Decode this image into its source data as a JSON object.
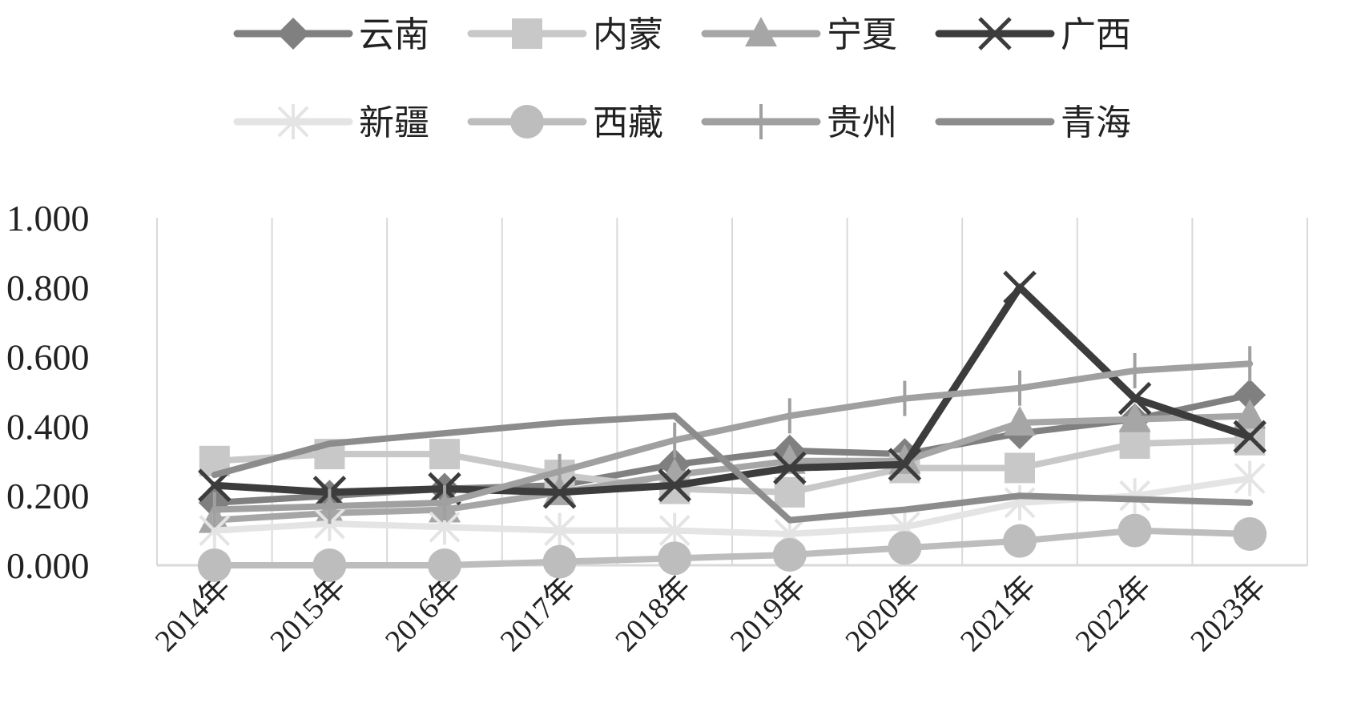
{
  "chart_data": {
    "type": "line",
    "categories": [
      "2014年",
      "2015年",
      "2016年",
      "2017年",
      "2018年",
      "2019年",
      "2020年",
      "2021年",
      "2022年",
      "2023年"
    ],
    "y_ticks": [
      "0.000",
      "0.200",
      "0.400",
      "0.600",
      "0.800",
      "1.000"
    ],
    "ylim": [
      0,
      1
    ],
    "grid": "vertical",
    "legend_position": "top",
    "series": [
      {
        "name": "云南",
        "marker": "diamond",
        "color": "#808080",
        "values": [
          0.18,
          0.2,
          0.22,
          0.23,
          0.29,
          0.33,
          0.32,
          0.38,
          0.42,
          0.49
        ]
      },
      {
        "name": "内蒙",
        "marker": "square",
        "color": "#c8c8c8",
        "values": [
          0.3,
          0.32,
          0.32,
          0.26,
          0.22,
          0.21,
          0.28,
          0.28,
          0.35,
          0.36
        ]
      },
      {
        "name": "宁夏",
        "marker": "triangle",
        "color": "#a6a6a6",
        "values": [
          0.13,
          0.15,
          0.16,
          0.21,
          0.26,
          0.3,
          0.3,
          0.41,
          0.42,
          0.43
        ]
      },
      {
        "name": "广西",
        "marker": "x",
        "color": "#3c3c3c",
        "values": [
          0.23,
          0.21,
          0.22,
          0.21,
          0.23,
          0.28,
          0.29,
          0.8,
          0.48,
          0.37
        ]
      },
      {
        "name": "新疆",
        "marker": "star",
        "color": "#e4e4e4",
        "values": [
          0.1,
          0.12,
          0.11,
          0.1,
          0.1,
          0.09,
          0.11,
          0.18,
          0.2,
          0.25
        ]
      },
      {
        "name": "西藏",
        "marker": "circle",
        "color": "#bdbdbd",
        "values": [
          0.0,
          0.0,
          0.0,
          0.01,
          0.02,
          0.03,
          0.05,
          0.07,
          0.1,
          0.09
        ]
      },
      {
        "name": "贵州",
        "marker": "plus",
        "color": "#a0a0a0",
        "values": [
          0.16,
          0.17,
          0.18,
          0.27,
          0.36,
          0.43,
          0.48,
          0.51,
          0.56,
          0.58
        ]
      },
      {
        "name": "青海",
        "marker": "dash",
        "color": "#8c8c8c",
        "values": [
          0.26,
          0.35,
          0.38,
          0.41,
          0.43,
          0.13,
          0.16,
          0.2,
          0.19,
          0.18
        ]
      }
    ]
  }
}
